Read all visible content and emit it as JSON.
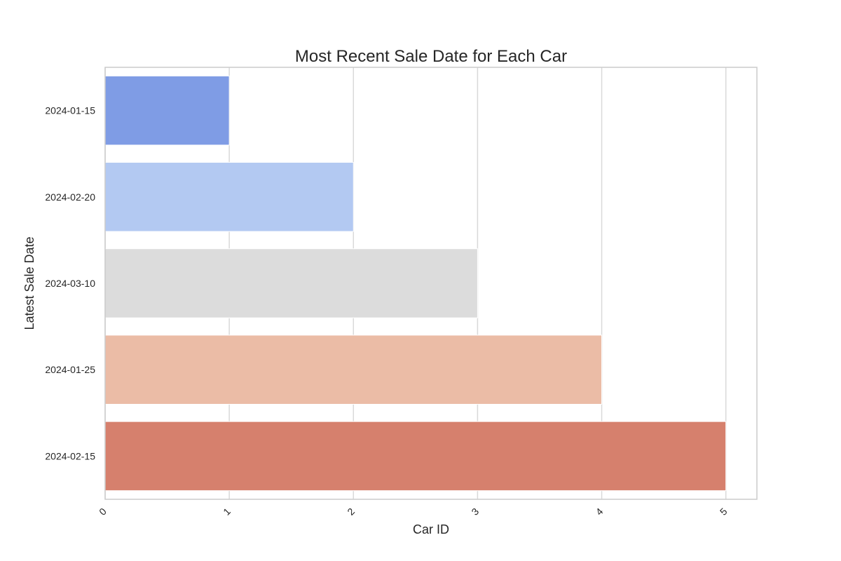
{
  "chart_data": {
    "type": "bar",
    "orientation": "horizontal",
    "title": "Most Recent Sale Date for Each Car",
    "xlabel": "Car ID",
    "ylabel": "Latest Sale Date",
    "categories": [
      "2024-01-15",
      "2024-02-20",
      "2024-03-10",
      "2024-01-25",
      "2024-02-15"
    ],
    "values": [
      1,
      2,
      3,
      4,
      5
    ],
    "colors": [
      "#7f9ce5",
      "#b3c9f2",
      "#dcdcdc",
      "#ebbca6",
      "#d6806d"
    ],
    "xlim": [
      0,
      5.25
    ],
    "xticks": [
      "0",
      "1",
      "2",
      "3",
      "4",
      "5"
    ],
    "grid": true,
    "legend": "none"
  }
}
